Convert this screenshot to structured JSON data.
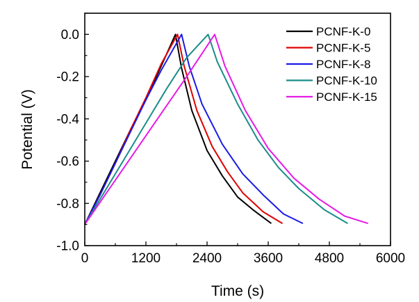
{
  "chart_data": {
    "type": "line",
    "title": "",
    "xlabel": "Time (s)",
    "ylabel": "Potential (V)",
    "xlim": [
      0,
      6000
    ],
    "ylim": [
      -1.0,
      0.1
    ],
    "xticks": [
      0,
      1200,
      2400,
      3600,
      4800,
      6000
    ],
    "xtick_labels": [
      "0",
      "1200",
      "2400",
      "3600",
      "4800",
      "6000"
    ],
    "yticks": [
      -1.0,
      -0.8,
      -0.6,
      -0.4,
      -0.2,
      0.0
    ],
    "ytick_labels": [
      "-1.0",
      "-0.8",
      "-0.6",
      "-0.4",
      "-0.2",
      "0.0"
    ],
    "grid": false,
    "legend_position": "top-right",
    "series": [
      {
        "name": "PCNF-K-0",
        "color": "#000000",
        "x": [
          0,
          300,
          600,
          900,
          1200,
          1500,
          1780,
          1900,
          2100,
          2400,
          2700,
          3000,
          3300,
          3660
        ],
        "y": [
          -0.9,
          -0.75,
          -0.6,
          -0.45,
          -0.31,
          -0.15,
          0.0,
          -0.16,
          -0.36,
          -0.55,
          -0.67,
          -0.77,
          -0.83,
          -0.895
        ]
      },
      {
        "name": "PCNF-K-5",
        "color": "#e00000",
        "x": [
          0,
          300,
          600,
          900,
          1200,
          1500,
          1820,
          1950,
          2200,
          2500,
          2800,
          3100,
          3500,
          3880
        ],
        "y": [
          -0.9,
          -0.76,
          -0.61,
          -0.45,
          -0.3,
          -0.14,
          0.0,
          -0.15,
          -0.36,
          -0.53,
          -0.65,
          -0.75,
          -0.84,
          -0.895
        ]
      },
      {
        "name": "PCNF-K-8",
        "color": "#1a1ae6",
        "x": [
          0,
          300,
          600,
          900,
          1200,
          1500,
          1900,
          2050,
          2300,
          2700,
          3100,
          3500,
          3900,
          4280
        ],
        "y": [
          -0.9,
          -0.76,
          -0.61,
          -0.46,
          -0.31,
          -0.17,
          0.0,
          -0.15,
          -0.33,
          -0.52,
          -0.66,
          -0.76,
          -0.85,
          -0.895
        ]
      },
      {
        "name": "PCNF-K-10",
        "color": "#1a8c88",
        "x": [
          0,
          400,
          800,
          1200,
          1600,
          2000,
          2420,
          2600,
          3000,
          3400,
          3800,
          4200,
          4700,
          5160
        ],
        "y": [
          -0.9,
          -0.74,
          -0.58,
          -0.42,
          -0.26,
          -0.11,
          0.0,
          -0.13,
          -0.33,
          -0.5,
          -0.63,
          -0.73,
          -0.83,
          -0.895
        ]
      },
      {
        "name": "PCNF-K-15",
        "color": "#e61ae6",
        "x": [
          0,
          400,
          800,
          1200,
          1600,
          2000,
          2550,
          2750,
          3150,
          3600,
          4100,
          4600,
          5100,
          5560
        ],
        "y": [
          -0.9,
          -0.76,
          -0.62,
          -0.48,
          -0.34,
          -0.2,
          0.0,
          -0.15,
          -0.36,
          -0.54,
          -0.68,
          -0.78,
          -0.86,
          -0.895
        ]
      }
    ]
  }
}
